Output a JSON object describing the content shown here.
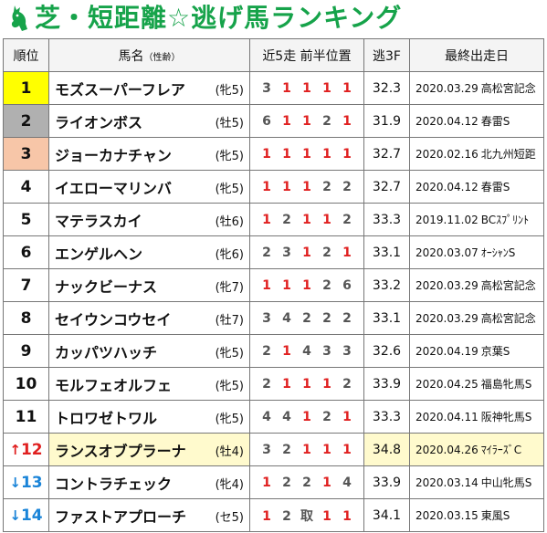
{
  "title": "芝・短距離☆逃げ馬ランキング",
  "headers": {
    "rank": "順位",
    "name": "馬名",
    "name_sub": "（性齢）",
    "positions": "近5走 前半位置",
    "time": "逃3F",
    "last": "最終出走日"
  },
  "rows": [
    {
      "rank": "1",
      "change": "",
      "name": "モズスーパーフレア",
      "sex": "(牝5)",
      "pos": [
        "3",
        "1",
        "1",
        "1",
        "1"
      ],
      "time": "32.3",
      "date": "2020.03.29",
      "race": "高松宮記念"
    },
    {
      "rank": "2",
      "change": "",
      "name": "ライオンボス",
      "sex": "(牡5)",
      "pos": [
        "6",
        "1",
        "1",
        "2",
        "1"
      ],
      "time": "31.9",
      "date": "2020.04.12",
      "race": "春雷S"
    },
    {
      "rank": "3",
      "change": "",
      "name": "ジョーカナチャン",
      "sex": "(牝5)",
      "pos": [
        "1",
        "1",
        "1",
        "1",
        "1"
      ],
      "time": "32.7",
      "date": "2020.02.16",
      "race": "北九州短距"
    },
    {
      "rank": "4",
      "change": "",
      "name": "イエローマリンバ",
      "sex": "(牝5)",
      "pos": [
        "1",
        "1",
        "1",
        "2",
        "2"
      ],
      "time": "32.7",
      "date": "2020.04.12",
      "race": "春雷S"
    },
    {
      "rank": "5",
      "change": "",
      "name": "マテラスカイ",
      "sex": "(牡6)",
      "pos": [
        "1",
        "2",
        "1",
        "1",
        "2"
      ],
      "time": "33.3",
      "date": "2019.11.02",
      "race": "BCｽﾌﾟﾘﾝﾄ"
    },
    {
      "rank": "6",
      "change": "",
      "name": "エンゲルヘン",
      "sex": "(牝6)",
      "pos": [
        "2",
        "3",
        "1",
        "2",
        "1"
      ],
      "time": "33.1",
      "date": "2020.03.07",
      "race": "ｵｰｼｬﾝS"
    },
    {
      "rank": "7",
      "change": "",
      "name": "ナックビーナス",
      "sex": "(牝7)",
      "pos": [
        "1",
        "1",
        "1",
        "2",
        "6"
      ],
      "time": "33.2",
      "date": "2020.03.29",
      "race": "高松宮記念"
    },
    {
      "rank": "8",
      "change": "",
      "name": "セイウンコウセイ",
      "sex": "(牡7)",
      "pos": [
        "3",
        "4",
        "2",
        "2",
        "2"
      ],
      "time": "33.1",
      "date": "2020.03.29",
      "race": "高松宮記念"
    },
    {
      "rank": "9",
      "change": "",
      "name": "カッパツハッチ",
      "sex": "(牝5)",
      "pos": [
        "2",
        "1",
        "4",
        "3",
        "3"
      ],
      "time": "32.6",
      "date": "2020.04.19",
      "race": "京葉S"
    },
    {
      "rank": "10",
      "change": "",
      "name": "モルフェオルフェ",
      "sex": "(牝5)",
      "pos": [
        "2",
        "1",
        "1",
        "1",
        "2"
      ],
      "time": "33.9",
      "date": "2020.04.25",
      "race": "福島牝馬S"
    },
    {
      "rank": "11",
      "change": "",
      "name": "トロワゼトワル",
      "sex": "(牝5)",
      "pos": [
        "4",
        "4",
        "1",
        "2",
        "1"
      ],
      "time": "33.3",
      "date": "2020.04.11",
      "race": "阪神牝馬S"
    },
    {
      "rank": "12",
      "change": "↑",
      "name": "ランスオブプラーナ",
      "sex": "(牡4)",
      "pos": [
        "3",
        "2",
        "1",
        "1",
        "1"
      ],
      "time": "34.8",
      "date": "2020.04.26",
      "race": "ﾏｲﾗｰｽﾞC"
    },
    {
      "rank": "13",
      "change": "↓",
      "name": "コントラチェック",
      "sex": "(牝4)",
      "pos": [
        "1",
        "2",
        "2",
        "1",
        "4"
      ],
      "time": "33.9",
      "date": "2020.03.14",
      "race": "中山牝馬S"
    },
    {
      "rank": "14",
      "change": "↓",
      "name": "ファストアプローチ",
      "sex": "(セ5)",
      "pos": [
        "1",
        "2",
        "取",
        "1",
        "1"
      ],
      "time": "34.1",
      "date": "2020.03.15",
      "race": "東風S"
    }
  ],
  "colors": {
    "title": "#16a34a",
    "first": "#ffff00",
    "second": "#b0b0b0",
    "third": "#f7c6a8",
    "highlight": "#fffacd",
    "red": "#e02020",
    "blue": "#1a84d8"
  },
  "icons": {
    "title_icon": "horse-head-icon"
  }
}
